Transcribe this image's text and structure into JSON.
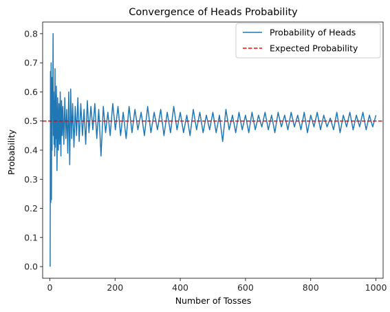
{
  "chart_data": {
    "type": "line",
    "title": "Convergence of Heads Probability",
    "xlabel": "Number of Tosses",
    "ylabel": "Probability",
    "xlim": [
      -22,
      1022
    ],
    "ylim": [
      -0.04,
      0.84
    ],
    "xticks": [
      0,
      200,
      400,
      600,
      800,
      1000
    ],
    "yticks": [
      0.0,
      0.1,
      0.2,
      0.3,
      0.4,
      0.5,
      0.6,
      0.7,
      0.8
    ],
    "grid": false,
    "legend_position": "top-right",
    "series": [
      {
        "name": "Probability of Heads",
        "color": "#1f77b4",
        "style": "solid",
        "x": [
          1,
          2,
          3,
          4,
          5,
          6,
          7,
          8,
          9,
          10,
          11,
          12,
          13,
          14,
          15,
          16,
          17,
          18,
          19,
          20,
          22,
          24,
          26,
          28,
          30,
          32,
          34,
          36,
          38,
          40,
          43,
          46,
          49,
          52,
          55,
          58,
          61,
          64,
          67,
          70,
          74,
          78,
          82,
          86,
          90,
          95,
          100,
          105,
          110,
          115,
          120,
          126,
          132,
          138,
          144,
          150,
          157,
          164,
          171,
          178,
          185,
          193,
          201,
          209,
          217,
          225,
          234,
          243,
          252,
          261,
          270,
          280,
          290,
          300,
          310,
          320,
          330,
          340,
          350,
          360,
          370,
          380,
          390,
          400,
          410,
          420,
          430,
          440,
          450,
          460,
          470,
          480,
          490,
          500,
          510,
          520,
          530,
          540,
          550,
          560,
          570,
          580,
          590,
          600,
          610,
          620,
          630,
          640,
          650,
          660,
          670,
          680,
          690,
          700,
          710,
          720,
          730,
          740,
          750,
          760,
          770,
          780,
          790,
          800,
          810,
          820,
          830,
          840,
          850,
          860,
          870,
          880,
          890,
          900,
          910,
          920,
          930,
          940,
          950,
          960,
          970,
          980,
          990,
          1000
        ],
        "values": [
          0.0,
          0.67,
          0.22,
          0.7,
          0.23,
          0.65,
          0.4,
          0.61,
          0.55,
          0.8,
          0.45,
          0.6,
          0.42,
          0.57,
          0.38,
          0.68,
          0.41,
          0.59,
          0.44,
          0.62,
          0.33,
          0.58,
          0.4,
          0.56,
          0.42,
          0.6,
          0.38,
          0.57,
          0.45,
          0.55,
          0.42,
          0.58,
          0.44,
          0.54,
          0.39,
          0.6,
          0.35,
          0.61,
          0.44,
          0.56,
          0.41,
          0.55,
          0.45,
          0.58,
          0.43,
          0.56,
          0.45,
          0.54,
          0.42,
          0.57,
          0.46,
          0.55,
          0.47,
          0.56,
          0.44,
          0.54,
          0.38,
          0.55,
          0.46,
          0.53,
          0.45,
          0.56,
          0.47,
          0.55,
          0.45,
          0.53,
          0.44,
          0.55,
          0.46,
          0.54,
          0.47,
          0.53,
          0.45,
          0.55,
          0.46,
          0.53,
          0.47,
          0.54,
          0.45,
          0.53,
          0.46,
          0.55,
          0.47,
          0.53,
          0.46,
          0.52,
          0.45,
          0.54,
          0.47,
          0.53,
          0.46,
          0.52,
          0.47,
          0.53,
          0.46,
          0.52,
          0.43,
          0.54,
          0.47,
          0.52,
          0.46,
          0.53,
          0.47,
          0.52,
          0.46,
          0.53,
          0.47,
          0.52,
          0.48,
          0.53,
          0.47,
          0.52,
          0.46,
          0.53,
          0.48,
          0.52,
          0.47,
          0.53,
          0.48,
          0.52,
          0.47,
          0.53,
          0.46,
          0.52,
          0.48,
          0.53,
          0.47,
          0.52,
          0.48,
          0.51,
          0.47,
          0.53,
          0.46,
          0.52,
          0.48,
          0.53,
          0.47,
          0.52,
          0.48,
          0.53,
          0.47,
          0.52,
          0.48,
          0.52
        ]
      },
      {
        "name": "Expected Probability",
        "color": "#ff0000",
        "style": "dashed",
        "y": 0.5
      }
    ]
  }
}
